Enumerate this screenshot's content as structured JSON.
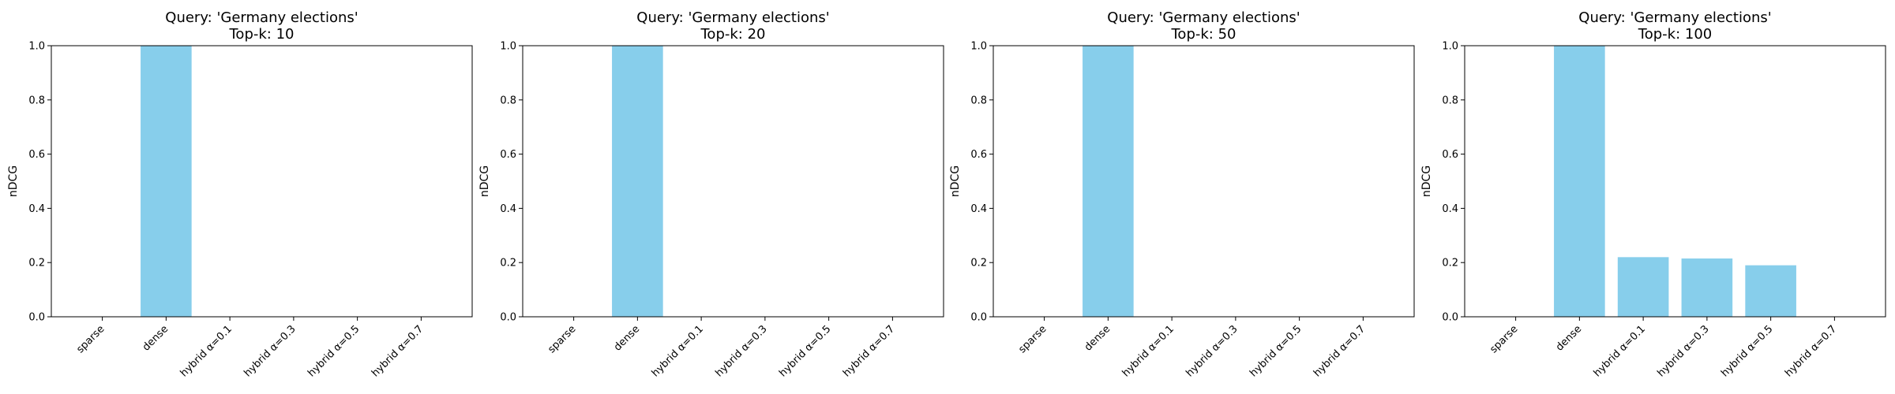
{
  "chart_data": [
    {
      "type": "bar",
      "title_line1": "Query: 'Germany elections'",
      "title_line2": "Top-k: 10",
      "ylabel": "nDCG",
      "xlabel": "",
      "ylim": [
        0,
        1.0
      ],
      "yticks": [
        "0.0",
        "0.2",
        "0.4",
        "0.6",
        "0.8",
        "1.0"
      ],
      "categories": [
        "sparse",
        "dense",
        "hybrid α=0.1",
        "hybrid α=0.3",
        "hybrid α=0.5",
        "hybrid α=0.7"
      ],
      "values": [
        0,
        1.0,
        0,
        0,
        0,
        0
      ],
      "bar_color": "#87CEEB",
      "grid": false
    },
    {
      "type": "bar",
      "title_line1": "Query: 'Germany elections'",
      "title_line2": "Top-k: 20",
      "ylabel": "nDCG",
      "xlabel": "",
      "ylim": [
        0,
        1.0
      ],
      "yticks": [
        "0.0",
        "0.2",
        "0.4",
        "0.6",
        "0.8",
        "1.0"
      ],
      "categories": [
        "sparse",
        "dense",
        "hybrid α=0.1",
        "hybrid α=0.3",
        "hybrid α=0.5",
        "hybrid α=0.7"
      ],
      "values": [
        0,
        1.0,
        0,
        0,
        0,
        0
      ],
      "bar_color": "#87CEEB",
      "grid": false
    },
    {
      "type": "bar",
      "title_line1": "Query: 'Germany elections'",
      "title_line2": "Top-k: 50",
      "ylabel": "nDCG",
      "xlabel": "",
      "ylim": [
        0,
        1.0
      ],
      "yticks": [
        "0.0",
        "0.2",
        "0.4",
        "0.6",
        "0.8",
        "1.0"
      ],
      "categories": [
        "sparse",
        "dense",
        "hybrid α=0.1",
        "hybrid α=0.3",
        "hybrid α=0.5",
        "hybrid α=0.7"
      ],
      "values": [
        0,
        1.0,
        0,
        0,
        0,
        0
      ],
      "bar_color": "#87CEEB",
      "grid": false
    },
    {
      "type": "bar",
      "title_line1": "Query: 'Germany elections'",
      "title_line2": "Top-k: 100",
      "ylabel": "nDCG",
      "xlabel": "",
      "ylim": [
        0,
        1.0
      ],
      "yticks": [
        "0.0",
        "0.2",
        "0.4",
        "0.6",
        "0.8",
        "1.0"
      ],
      "categories": [
        "sparse",
        "dense",
        "hybrid α=0.1",
        "hybrid α=0.3",
        "hybrid α=0.5",
        "hybrid α=0.7"
      ],
      "values": [
        0,
        1.0,
        0.22,
        0.215,
        0.19,
        0
      ],
      "bar_color": "#87CEEB",
      "grid": false
    }
  ]
}
